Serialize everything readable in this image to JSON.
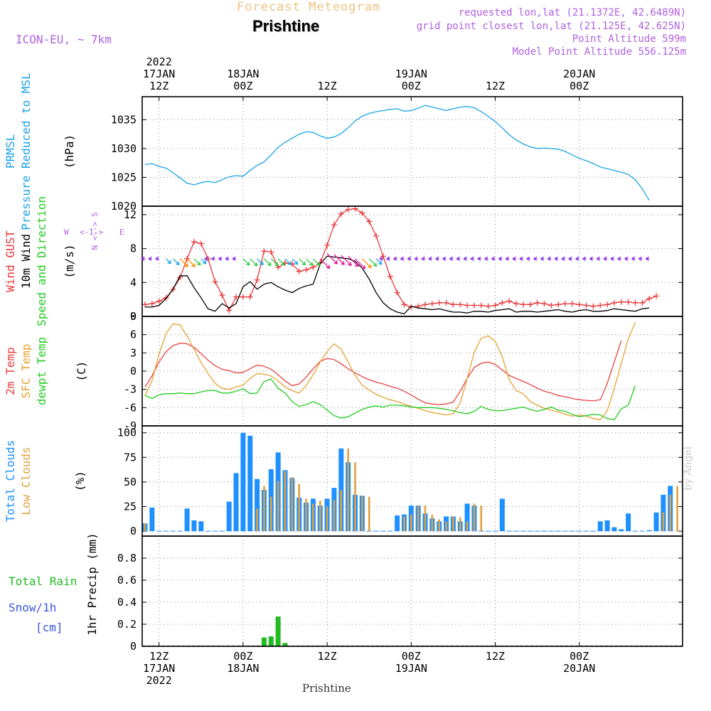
{
  "header": {
    "title_top": "Forecast Meteogram",
    "location": "Prishtine",
    "model": "ICON-EU, ~ 7km",
    "requested": "requested lon,lat (21.1372E, 42.6489N)",
    "grid_point": "grid point closest lon,lat (21.125E, 42.625N)",
    "point_alt": "Point Altitude 599m",
    "model_alt": "Model Point Altitude 556.125m",
    "footer": "Prishtine",
    "watermark": "by Angel"
  },
  "colors": {
    "pressure": "#1aa3e8",
    "gust": "#e8393a",
    "wind": "#000000",
    "temp": "#e84040",
    "sfc": "#e8a030",
    "dewpt": "#22cc22",
    "total_cloud": "#1e90ff",
    "low_cloud": "#e0a040",
    "rain": "#22bb22",
    "snow": "#3a56e0",
    "header_orange": "#f0c080",
    "header_purple": "#b060e0"
  },
  "chart_data": {
    "type": "line",
    "time_axis": {
      "start": "2022-01-17 05Z",
      "end": "2022-01-20 23Z",
      "step_hours": 1,
      "top_labels": [
        {
          "hour": 7,
          "lines": [
            "2022",
            "17JAN",
            "12Z"
          ]
        },
        {
          "hour": 19,
          "lines": [
            "18JAN",
            "00Z"
          ]
        },
        {
          "hour": 31,
          "lines": [
            "12Z"
          ]
        },
        {
          "hour": 43,
          "lines": [
            "19JAN",
            "00Z"
          ]
        },
        {
          "hour": 55,
          "lines": [
            "12Z"
          ]
        },
        {
          "hour": 67,
          "lines": [
            "20JAN",
            "00Z"
          ]
        }
      ],
      "bottom_labels": [
        {
          "hour": 7,
          "lines": [
            "12Z",
            "17JAN",
            "2022"
          ]
        },
        {
          "hour": 19,
          "lines": [
            "00Z",
            "18JAN"
          ]
        },
        {
          "hour": 31,
          "lines": [
            "12Z"
          ]
        },
        {
          "hour": 43,
          "lines": [
            "00Z",
            "19JAN"
          ]
        },
        {
          "hour": 55,
          "lines": [
            "12Z"
          ]
        },
        {
          "hour": 67,
          "lines": [
            "00Z",
            "20JAN"
          ]
        }
      ]
    },
    "panels": [
      {
        "id": "pressure",
        "labels": [
          {
            "text": "PRMSL",
            "color": "#1aa3e8"
          },
          {
            "text": "Pressure Reduced to MSL",
            "color": "#1aa3e8"
          }
        ],
        "unit": "(hPa)",
        "ylim": [
          1020,
          1039
        ],
        "yticks": [
          1020,
          1025,
          1030,
          1035
        ],
        "grid": true,
        "series": [
          {
            "name": "PRMSL",
            "color": "#1aa3e8",
            "values": [
              1027.2,
              1027.4,
              1026.9,
              1026.6,
              1025.8,
              1024.9,
              1024.0,
              1023.7,
              1024.1,
              1024.3,
              1024.1,
              1024.6,
              1025.1,
              1025.3,
              1025.2,
              1026.2,
              1027.1,
              1027.7,
              1028.9,
              1030.2,
              1031.1,
              1031.8,
              1032.5,
              1032.9,
              1032.8,
              1032.2,
              1031.8,
              1032.0,
              1032.6,
              1033.6,
              1034.8,
              1035.6,
              1036.1,
              1036.4,
              1036.6,
              1036.8,
              1036.9,
              1036.5,
              1036.6,
              1037.0,
              1037.5,
              1037.2,
              1036.9,
              1036.6,
              1036.9,
              1037.2,
              1037.3,
              1037.1,
              1036.4,
              1035.6,
              1034.7,
              1033.6,
              1032.4,
              1031.5,
              1030.8,
              1030.3,
              1030.0,
              1030.1,
              1030.0,
              1029.9,
              1029.5,
              1028.9,
              1028.3,
              1027.9,
              1027.4,
              1026.8,
              1026.5,
              1026.2,
              1025.9,
              1025.5,
              1024.6,
              1023.0,
              1021.0
            ]
          }
        ]
      },
      {
        "id": "wind",
        "labels": [
          {
            "text": "Wind GUST",
            "color": "#e8393a"
          },
          {
            "text": "10m Wind",
            "color": "#000000"
          },
          {
            "text": "Speed and Direction",
            "color": "#22cc22"
          }
        ],
        "unit": "(m/s)",
        "compass": {
          "n": "N",
          "s": "S",
          "w": "W",
          "e": "E"
        },
        "ylim": [
          0,
          13
        ],
        "yticks": [
          0,
          4,
          8,
          12
        ],
        "grid": true,
        "series": [
          {
            "name": "Wind GUST",
            "color": "#e8393a",
            "marker": "+",
            "values": [
              1.4,
              1.5,
              1.8,
              2.2,
              3.2,
              4.6,
              6.8,
              8.8,
              8.6,
              6.8,
              4.1,
              2.5,
              0.7,
              2.3,
              2.3,
              2.3,
              4.3,
              7.7,
              7.6,
              5.8,
              6.3,
              6.2,
              5.3,
              5.5,
              5.8,
              6.3,
              8.4,
              10.8,
              12.1,
              12.6,
              12.7,
              12.2,
              11.2,
              9.5,
              7.1,
              4.7,
              2.8,
              1.4,
              1.1,
              1.2,
              1.4,
              1.5,
              1.6,
              1.6,
              1.4,
              1.4,
              1.3,
              1.3,
              1.3,
              1.2,
              1.3,
              1.6,
              1.8,
              1.5,
              1.4,
              1.4,
              1.6,
              1.5,
              1.3,
              1.4,
              1.5,
              1.5,
              1.4,
              1.3,
              1.2,
              1.3,
              1.4,
              1.6,
              1.7,
              1.7,
              1.6,
              1.6,
              2.1,
              2.4
            ]
          },
          {
            "name": "10m Wind",
            "color": "#000000",
            "values": [
              1.1,
              1.1,
              1.3,
              2.1,
              3.2,
              4.8,
              4.8,
              3.4,
              2.2,
              0.9,
              0.6,
              1.5,
              1.0,
              1.5,
              3.5,
              4.1,
              3.2,
              3.8,
              4.0,
              3.5,
              3.1,
              2.8,
              3.3,
              3.6,
              3.8,
              6.2,
              7.1,
              7.0,
              6.9,
              6.8,
              6.5,
              5.7,
              4.4,
              2.8,
              1.6,
              0.9,
              0.5,
              0.3,
              1.2,
              1.0,
              0.9,
              0.8,
              0.9,
              0.7,
              0.5,
              0.5,
              0.4,
              0.6,
              0.6,
              0.5,
              0.7,
              0.8,
              0.9,
              0.5,
              0.6,
              0.6,
              0.5,
              0.6,
              0.7,
              0.8,
              0.6,
              0.5,
              0.7,
              0.8,
              0.6,
              0.6,
              0.7,
              0.9,
              0.8,
              0.7,
              0.6,
              0.9,
              1.0
            ]
          }
        ]
      },
      {
        "id": "temperature",
        "labels": [
          {
            "text": "2m Temp",
            "color": "#e84040"
          },
          {
            "text": "SFC Temp",
            "color": "#e8a030"
          },
          {
            "text": "dewpt Temp",
            "color": "#22cc22"
          }
        ],
        "unit": "(C)",
        "ylim": [
          -9,
          9
        ],
        "yticks": [
          -9,
          -6,
          -3,
          0,
          3,
          6,
          9
        ],
        "grid": true,
        "series": [
          {
            "name": "2m Temp",
            "color": "#e84040",
            "values": [
              -2.6,
              -0.8,
              1.5,
              3.2,
              4.2,
              4.6,
              4.5,
              3.9,
              2.9,
              1.8,
              0.9,
              0.3,
              0.1,
              -0.3,
              -0.2,
              0.4,
              1.0,
              0.8,
              0.3,
              -0.6,
              -1.6,
              -2.4,
              -2.1,
              -1.0,
              0.4,
              1.6,
              2.1,
              1.9,
              1.2,
              0.4,
              -0.3,
              -0.9,
              -1.4,
              -1.8,
              -2.1,
              -2.5,
              -2.8,
              -3.3,
              -3.9,
              -4.6,
              -5.2,
              -5.4,
              -5.5,
              -5.4,
              -5.1,
              -3.3,
              -1.2,
              0.6,
              1.3,
              1.5,
              1.1,
              0.2,
              -0.7,
              -1.2,
              -1.7,
              -2.2,
              -2.8,
              -3.3,
              -3.6,
              -4.0,
              -4.2,
              -4.5,
              -4.7,
              -4.8,
              -4.9,
              -4.7,
              -2.0,
              1.5,
              5.0
            ]
          },
          {
            "name": "SFC Temp",
            "color": "#e8a030",
            "values": [
              -4.0,
              -1.6,
              2.8,
              6.2,
              7.8,
              7.6,
              5.8,
              3.6,
              1.4,
              -0.4,
              -2.0,
              -2.8,
              -3.0,
              -2.6,
              -2.3,
              -1.2,
              -0.4,
              -0.5,
              -0.8,
              -1.6,
              -2.6,
              -3.2,
              -3.6,
              -2.4,
              -0.6,
              1.5,
              3.2,
              4.5,
              3.6,
              1.5,
              -0.7,
              -2.3,
              -3.1,
              -3.8,
              -4.3,
              -4.7,
              -5.0,
              -5.4,
              -5.8,
              -6.1,
              -6.5,
              -6.8,
              -7.0,
              -7.2,
              -7.0,
              -5.2,
              -1.2,
              3.1,
              5.4,
              5.8,
              4.9,
              2.4,
              -1.4,
              -3.2,
              -3.7,
              -5.0,
              -5.6,
              -6.1,
              -6.4,
              -6.7,
              -7.1,
              -7.4,
              -7.2,
              -7.4,
              -7.8,
              -8.0,
              -6.5,
              -2.8,
              1.3,
              5.3,
              8.0
            ]
          },
          {
            "name": "dewpt Temp",
            "color": "#22cc22",
            "values": [
              -4.0,
              -4.5,
              -3.9,
              -3.7,
              -3.7,
              -3.6,
              -3.7,
              -3.7,
              -3.4,
              -3.2,
              -3.2,
              -3.6,
              -3.6,
              -3.3,
              -2.9,
              -3.7,
              -3.6,
              -1.7,
              -1.3,
              -2.8,
              -3.6,
              -5.0,
              -5.8,
              -5.5,
              -5.0,
              -5.5,
              -6.4,
              -7.3,
              -7.7,
              -7.5,
              -6.9,
              -6.3,
              -5.9,
              -5.7,
              -5.9,
              -5.6,
              -5.6,
              -5.7,
              -5.9,
              -6.0,
              -6.0,
              -6.0,
              -6.1,
              -6.3,
              -6.5,
              -6.8,
              -7.0,
              -6.6,
              -5.8,
              -6.3,
              -6.5,
              -6.5,
              -6.3,
              -6.1,
              -5.9,
              -6.3,
              -6.6,
              -6.3,
              -5.9,
              -6.4,
              -6.6,
              -7.1,
              -7.5,
              -7.3,
              -7.1,
              -7.2,
              -7.8,
              -8.0,
              -6.2,
              -5.6,
              -2.4
            ]
          }
        ]
      },
      {
        "id": "clouds",
        "labels": [
          {
            "text": "Total Clouds",
            "color": "#1e90ff"
          },
          {
            "text": "Low Clouds",
            "color": "#e0a040"
          }
        ],
        "unit": "(%)",
        "type": "bar",
        "ylim": [
          -5,
          107
        ],
        "yticks": [
          0,
          25,
          50,
          75,
          100
        ],
        "grid": true,
        "series": [
          {
            "name": "Total Clouds",
            "color": "#1e90ff",
            "values": [
              8,
              24,
              0,
              0,
              0,
              0,
              23,
              11,
              10,
              0,
              0,
              0,
              30,
              59,
              100,
              97,
              53,
              42,
              63,
              80,
              62,
              54,
              34,
              29,
              33,
              26,
              33,
              44,
              84,
              70,
              37,
              36,
              0,
              0,
              0,
              0,
              16,
              17,
              26,
              26,
              18,
              13,
              10,
              15,
              15,
              10,
              28,
              26,
              0,
              0,
              0,
              33,
              0,
              0,
              0,
              0,
              0,
              0,
              0,
              0,
              0,
              0,
              0,
              0,
              0,
              10,
              11,
              4,
              2,
              18,
              0,
              0,
              1,
              19,
              37,
              46
            ]
          },
          {
            "name": "Low Clouds",
            "color": "#e0a040",
            "values": [
              8,
              0,
              0,
              0,
              0,
              0,
              0,
              0,
              0,
              0,
              0,
              0,
              0,
              0,
              0,
              0,
              23,
              46,
              35,
              51,
              61,
              55,
              48,
              33,
              28,
              31,
              25,
              32,
              42,
              84,
              70,
              36,
              35,
              0,
              0,
              0,
              0,
              15,
              17,
              26,
              26,
              17,
              12,
              10,
              15,
              14,
              10,
              28,
              26,
              0,
              0,
              0,
              0,
              0,
              0,
              0,
              0,
              0,
              0,
              0,
              0,
              0,
              0,
              0,
              0,
              0,
              0,
              0,
              0,
              0,
              0,
              0,
              0,
              0,
              19,
              37,
              46
            ]
          }
        ]
      },
      {
        "id": "precip",
        "labels": [
          {
            "text": "Total Rain",
            "color": "#22bb22"
          },
          {
            "text": "Snow/1h",
            "color": "#3a56e0"
          },
          {
            "text": "[cm]",
            "color": "#3a56e0"
          }
        ],
        "unit": "1hr Precip (mm)",
        "type": "bar",
        "ylim": [
          0,
          1.0
        ],
        "yticks": [
          0,
          0.2,
          0.4,
          0.6,
          0.8
        ],
        "grid": true,
        "series": [
          {
            "name": "Total Rain",
            "color": "#22bb22",
            "values": [
              0,
              0,
              0,
              0,
              0,
              0,
              0,
              0,
              0,
              0,
              0,
              0,
              0,
              0,
              0,
              0,
              0,
              0.08,
              0.09,
              0.27,
              0.03,
              0,
              0,
              0,
              0,
              0,
              0,
              0,
              0,
              0,
              0,
              0,
              0,
              0,
              0,
              0,
              0,
              0,
              0,
              0,
              0,
              0,
              0,
              0,
              0,
              0,
              0,
              0,
              0,
              0,
              0,
              0,
              0,
              0,
              0,
              0,
              0,
              0,
              0,
              0,
              0,
              0,
              0,
              0,
              0,
              0,
              0,
              0,
              0,
              0,
              0,
              0,
              0,
              0
            ]
          }
        ]
      }
    ]
  }
}
